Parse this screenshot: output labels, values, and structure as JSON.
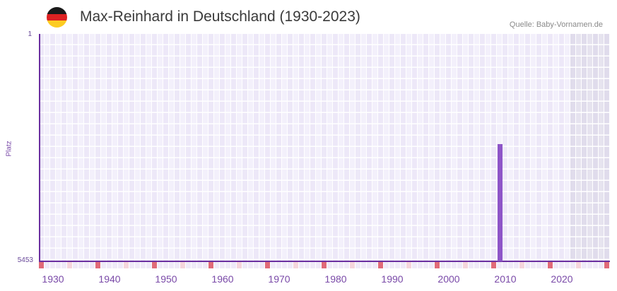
{
  "header": {
    "title": "Max-Reinhard in Deutschland (1930-2023)",
    "source": "Quelle: Baby-Vornamen.de",
    "flag": {
      "name": "germany-flag-icon",
      "colors": [
        "#1a1a1a",
        "#dd2222",
        "#fccc22"
      ]
    }
  },
  "colors": {
    "axis": "#6b2fa0",
    "bar": "#8e55c8",
    "col_a": "#ede8f8",
    "col_b": "#f3f0fb",
    "col_future_a": "#e0dcec",
    "col_future_b": "#e6e3ef",
    "marker_decade": "#e06a78",
    "marker_half": "#f5d5dc",
    "marker_none": "#efeaf8",
    "label": "#7a4aa8"
  },
  "chart_data": {
    "type": "bar",
    "title": "Max-Reinhard in Deutschland (1930-2023)",
    "subtitle": "Quelle: Baby-Vornamen.de",
    "xlabel": "",
    "ylabel": "Platz",
    "y_axis_inverted": true,
    "ylim": [
      1,
      5453
    ],
    "y_tick_labels": [
      "1",
      "5453"
    ],
    "x_range": [
      1928,
      2028
    ],
    "x_tick_labels": [
      "1930",
      "1940",
      "1950",
      "1960",
      "1970",
      "1980",
      "1990",
      "2000",
      "2010",
      "2020"
    ],
    "grid": true,
    "legend": null,
    "shaded_future_from_year": 2022,
    "series": [
      {
        "name": "Platz",
        "points": [
          {
            "year": 2009,
            "rank": 2642
          }
        ]
      }
    ]
  }
}
